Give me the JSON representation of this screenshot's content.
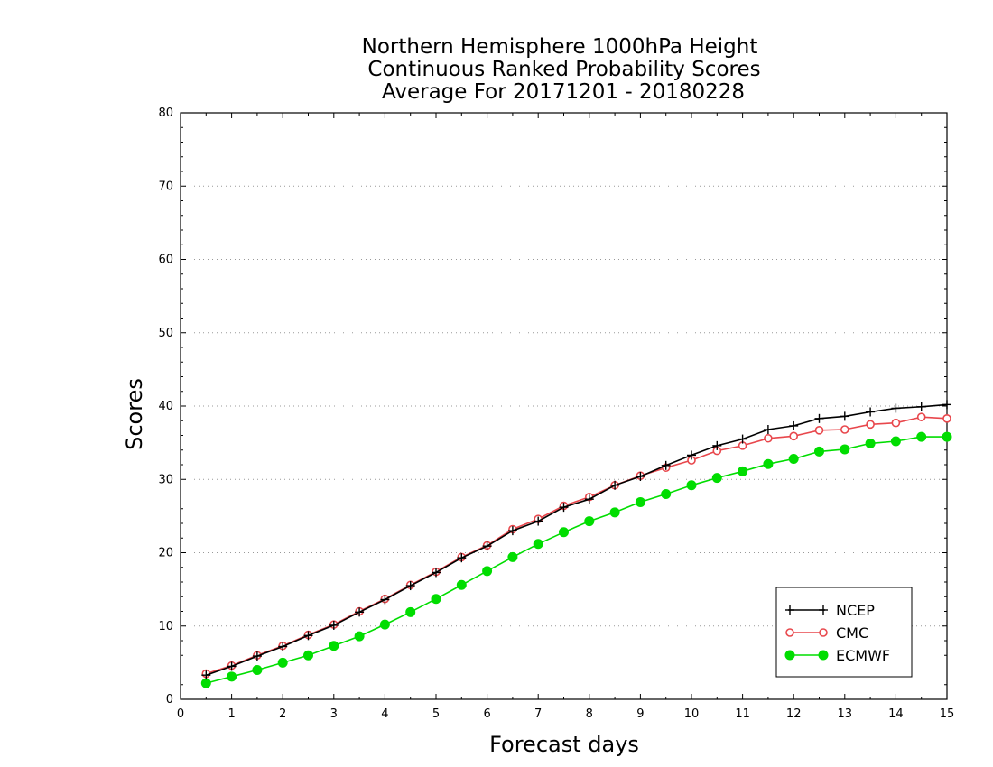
{
  "chart_data": {
    "type": "line",
    "title_lines": [
      "Northern Hemisphere 1000hPa Height",
      "Continuous Ranked Probability Scores",
      "Average For 20171201 - 20180228"
    ],
    "xlabel": "Forecast days",
    "ylabel": "Scores",
    "xlim": [
      0,
      15
    ],
    "ylim": [
      0,
      80
    ],
    "xticks": [
      "0",
      "1",
      "2",
      "3",
      "4",
      "5",
      "6",
      "7",
      "8",
      "9",
      "10",
      "11",
      "12",
      "13",
      "14",
      "15"
    ],
    "yticks": [
      "0",
      "10",
      "20",
      "30",
      "40",
      "50",
      "60",
      "70",
      "80"
    ],
    "grid": "horizontal dotted",
    "legend_position": "bottom-right",
    "x": [
      0.5,
      1,
      1.5,
      2,
      2.5,
      3,
      3.5,
      4,
      4.5,
      5,
      5.5,
      6,
      6.5,
      7,
      7.5,
      8,
      8.5,
      9,
      9.5,
      10,
      10.5,
      11,
      11.5,
      12,
      12.5,
      13,
      13.5,
      14,
      14.5,
      15
    ],
    "series": [
      {
        "name": "NCEP",
        "color": "#000000",
        "marker": "plus",
        "values": [
          3.3,
          4.5,
          5.9,
          7.2,
          8.7,
          10.1,
          11.9,
          13.6,
          15.5,
          17.3,
          19.3,
          20.9,
          23.0,
          24.3,
          26.2,
          27.3,
          29.2,
          30.4,
          31.9,
          33.3,
          34.6,
          35.5,
          36.8,
          37.3,
          38.3,
          38.6,
          39.2,
          39.7,
          39.9,
          40.2
        ]
      },
      {
        "name": "CMC",
        "color": "#e8474c",
        "marker": "open-circle",
        "values": [
          3.5,
          4.6,
          6.0,
          7.3,
          8.8,
          10.2,
          12.0,
          13.7,
          15.6,
          17.4,
          19.4,
          21.0,
          23.2,
          24.6,
          26.4,
          27.6,
          29.2,
          30.5,
          31.6,
          32.6,
          33.9,
          34.6,
          35.6,
          35.9,
          36.7,
          36.8,
          37.5,
          37.7,
          38.5,
          38.3
        ]
      },
      {
        "name": "ECMWF",
        "color": "#00dd00",
        "marker": "filled-circle",
        "values": [
          2.2,
          3.1,
          4.0,
          5.0,
          6.0,
          7.3,
          8.6,
          10.2,
          11.9,
          13.7,
          15.6,
          17.5,
          19.4,
          21.2,
          22.8,
          24.3,
          25.5,
          26.9,
          28.0,
          29.2,
          30.2,
          31.1,
          32.1,
          32.8,
          33.8,
          34.1,
          34.9,
          35.2,
          35.8,
          35.8
        ]
      }
    ]
  }
}
